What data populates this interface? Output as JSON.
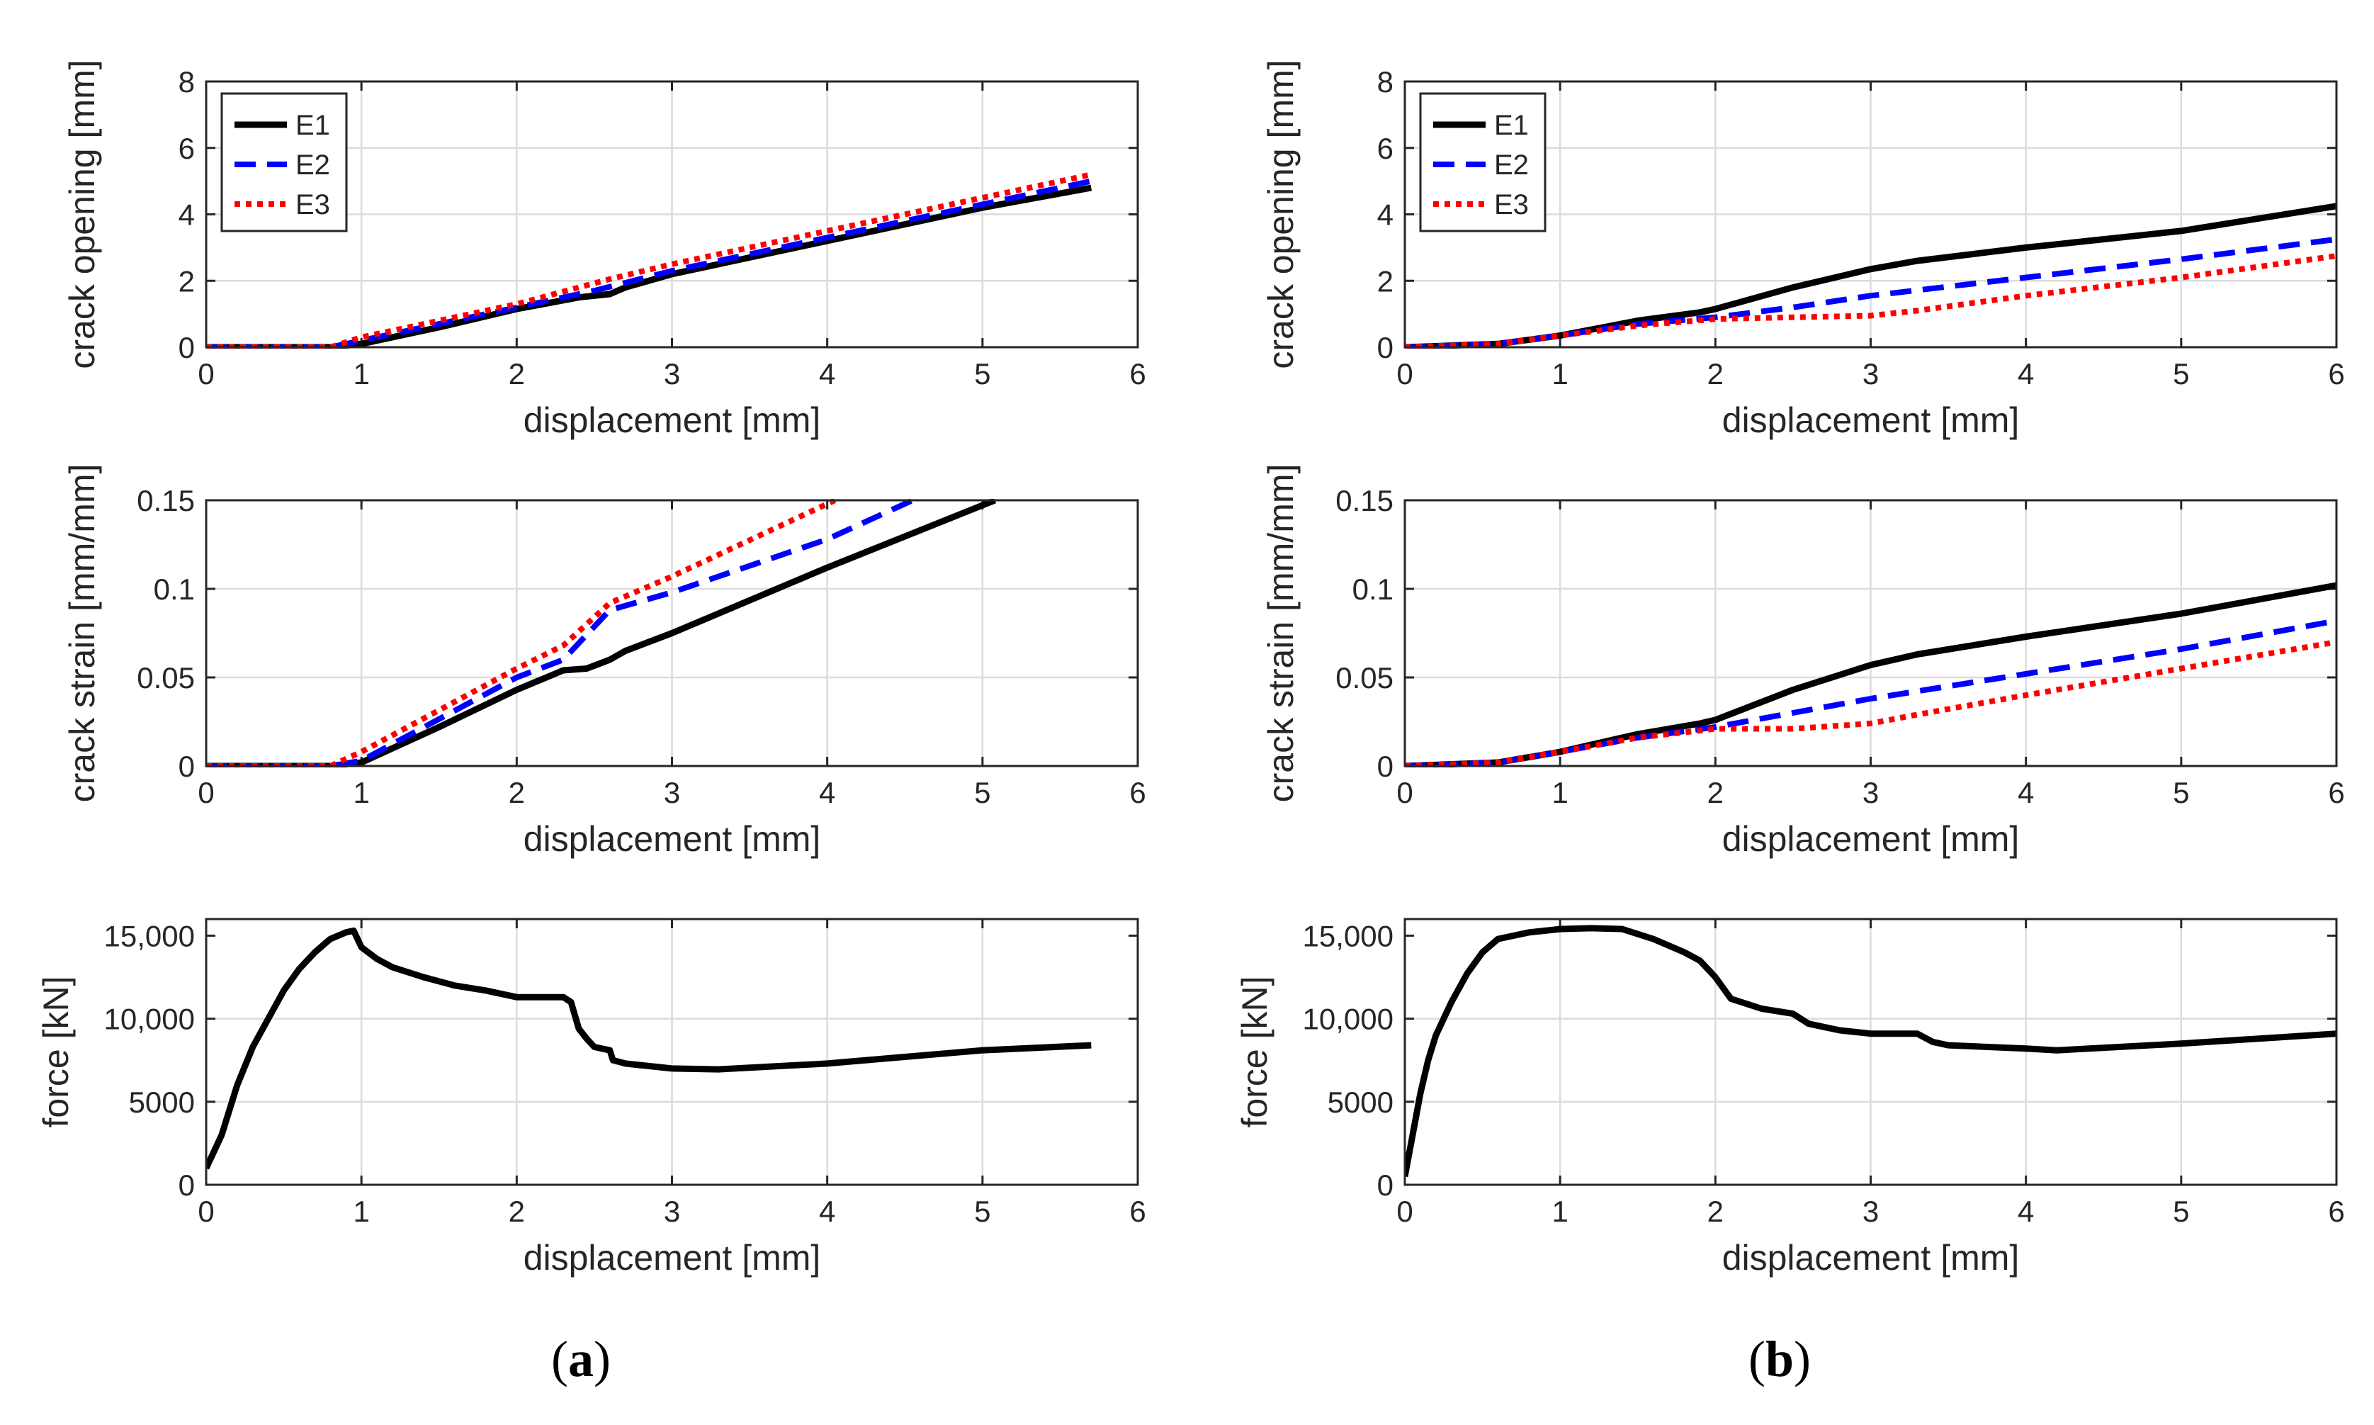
{
  "panels": [
    {
      "letter": "a",
      "open": "(",
      "close": ")"
    },
    {
      "letter": "b",
      "open": "(",
      "close": ")"
    }
  ],
  "colors": {
    "E1": "#000000",
    "E2": "#0000ff",
    "E3": "#ff0000"
  },
  "chart_data": [
    {
      "type": "line",
      "panel": "a",
      "title": "",
      "xlabel": "displacement [mm]",
      "ylabel": "crack opening [mm]",
      "xlim": [
        0,
        6
      ],
      "ylim": [
        0,
        8
      ],
      "xticks": [
        0,
        1,
        2,
        3,
        4,
        5,
        6
      ],
      "xtick_labels": [
        "0",
        "1",
        "2",
        "3",
        "4",
        "5",
        "6"
      ],
      "yticks": [
        0,
        2,
        4,
        6,
        8
      ],
      "ytick_labels": [
        "0",
        "2",
        "4",
        "6",
        "8"
      ],
      "grid": true,
      "legend_position": "top-left",
      "series": [
        {
          "name": "E1",
          "style": "solid",
          "x": [
            0,
            0.8,
            1.0,
            1.5,
            2.0,
            2.4,
            2.6,
            2.7,
            3.0,
            4.0,
            5.0,
            5.7
          ],
          "y": [
            0,
            0,
            0.1,
            0.6,
            1.15,
            1.5,
            1.6,
            1.8,
            2.2,
            3.2,
            4.2,
            4.8
          ]
        },
        {
          "name": "E2",
          "style": "dashed",
          "x": [
            0,
            0.8,
            1.0,
            2.0,
            2.5,
            3.0,
            4.0,
            5.0,
            5.7
          ],
          "y": [
            0,
            0,
            0.2,
            1.2,
            1.7,
            2.3,
            3.3,
            4.3,
            5.0
          ]
        },
        {
          "name": "E3",
          "style": "dotted",
          "x": [
            0,
            0.8,
            1.0,
            2.0,
            2.6,
            3.0,
            4.0,
            5.0,
            5.7
          ],
          "y": [
            0,
            0,
            0.3,
            1.3,
            2.05,
            2.5,
            3.5,
            4.5,
            5.2
          ]
        }
      ]
    },
    {
      "type": "line",
      "panel": "a",
      "title": "",
      "xlabel": "displacement [mm]",
      "ylabel": "crack strain [mm/mm]",
      "xlim": [
        0,
        6
      ],
      "ylim": [
        0,
        0.15
      ],
      "xticks": [
        0,
        1,
        2,
        3,
        4,
        5,
        6
      ],
      "xtick_labels": [
        "0",
        "1",
        "2",
        "3",
        "4",
        "5",
        "6"
      ],
      "yticks": [
        0,
        0.05,
        0.1,
        0.15
      ],
      "ytick_labels": [
        "0",
        "0.05",
        "0.1",
        "0.15"
      ],
      "grid": true,
      "series": [
        {
          "name": "E1",
          "style": "solid",
          "x": [
            0,
            0.8,
            1.0,
            1.5,
            2.0,
            2.3,
            2.45,
            2.6,
            2.7,
            3.0,
            4.0,
            5.08
          ],
          "y": [
            0,
            0,
            0.002,
            0.022,
            0.043,
            0.054,
            0.055,
            0.06,
            0.065,
            0.075,
            0.112,
            0.15
          ]
        },
        {
          "name": "E2",
          "style": "dashed",
          "x": [
            0,
            0.8,
            1.0,
            2.0,
            2.3,
            2.6,
            3.0,
            4.0,
            4.55
          ],
          "y": [
            0,
            0,
            0.003,
            0.05,
            0.06,
            0.088,
            0.098,
            0.128,
            0.15
          ]
        },
        {
          "name": "E3",
          "style": "dotted",
          "x": [
            0,
            0.8,
            1.0,
            2.0,
            2.3,
            2.6,
            3.0,
            4.05
          ],
          "y": [
            0,
            0,
            0.008,
            0.055,
            0.068,
            0.092,
            0.107,
            0.15
          ]
        }
      ]
    },
    {
      "type": "line",
      "panel": "a",
      "title": "",
      "xlabel": "displacement [mm]",
      "ylabel": "force [kN]",
      "xlim": [
        0,
        6
      ],
      "ylim": [
        0,
        16000
      ],
      "xticks": [
        0,
        1,
        2,
        3,
        4,
        5,
        6
      ],
      "xtick_labels": [
        "0",
        "1",
        "2",
        "3",
        "4",
        "5",
        "6"
      ],
      "yticks": [
        0,
        5000,
        10000,
        15000
      ],
      "ytick_labels": [
        "0",
        "5000",
        "10,000",
        "15,000"
      ],
      "grid": true,
      "series": [
        {
          "name": "E1",
          "style": "solid",
          "x": [
            0,
            0.05,
            0.1,
            0.2,
            0.3,
            0.4,
            0.5,
            0.6,
            0.7,
            0.8,
            0.9,
            0.95,
            1.0,
            1.1,
            1.2,
            1.4,
            1.6,
            1.8,
            2.0,
            2.2,
            2.3,
            2.35,
            2.4,
            2.45,
            2.5,
            2.6,
            2.62,
            2.7,
            3.0,
            3.3,
            4.0,
            4.5,
            5.0,
            5.7
          ],
          "y": [
            1000,
            2000,
            3000,
            6000,
            8300,
            10000,
            11700,
            13000,
            14000,
            14800,
            15200,
            15300,
            14300,
            13600,
            13100,
            12500,
            12000,
            11700,
            11300,
            11300,
            11300,
            11000,
            9400,
            8800,
            8300,
            8100,
            7500,
            7300,
            7000,
            6950,
            7300,
            7700,
            8100,
            8400
          ]
        }
      ]
    },
    {
      "type": "line",
      "panel": "b",
      "title": "",
      "xlabel": "displacement [mm]",
      "ylabel": "crack opening [mm]",
      "xlim": [
        0,
        6
      ],
      "ylim": [
        0,
        8
      ],
      "xticks": [
        0,
        1,
        2,
        3,
        4,
        5,
        6
      ],
      "xtick_labels": [
        "0",
        "1",
        "2",
        "3",
        "4",
        "5",
        "6"
      ],
      "yticks": [
        0,
        2,
        4,
        6,
        8
      ],
      "ytick_labels": [
        "0",
        "2",
        "4",
        "6",
        "8"
      ],
      "grid": true,
      "legend_position": "top-left",
      "series": [
        {
          "name": "E1",
          "style": "solid",
          "x": [
            0,
            0.6,
            1.0,
            1.5,
            1.9,
            2.0,
            2.5,
            3.0,
            3.3,
            4.0,
            5.0,
            6.0
          ],
          "y": [
            0,
            0.1,
            0.35,
            0.8,
            1.05,
            1.15,
            1.8,
            2.35,
            2.6,
            3.0,
            3.5,
            4.25
          ]
        },
        {
          "name": "E2",
          "style": "dashed",
          "x": [
            0,
            0.6,
            1.0,
            1.5,
            2.0,
            2.5,
            3.0,
            4.0,
            5.0,
            6.0
          ],
          "y": [
            0,
            0.1,
            0.35,
            0.7,
            0.9,
            1.2,
            1.55,
            2.1,
            2.65,
            3.25
          ]
        },
        {
          "name": "E3",
          "style": "dotted",
          "x": [
            0,
            0.6,
            1.0,
            1.5,
            2.0,
            2.5,
            3.0,
            3.3,
            4.0,
            5.0,
            6.0
          ],
          "y": [
            0,
            0.1,
            0.35,
            0.65,
            0.85,
            0.9,
            0.95,
            1.1,
            1.55,
            2.1,
            2.75
          ]
        }
      ]
    },
    {
      "type": "line",
      "panel": "b",
      "title": "",
      "xlabel": "displacement [mm]",
      "ylabel": "crack strain [mm/mm]",
      "xlim": [
        0,
        6
      ],
      "ylim": [
        0,
        0.15
      ],
      "xticks": [
        0,
        1,
        2,
        3,
        4,
        5,
        6
      ],
      "xtick_labels": [
        "0",
        "1",
        "2",
        "3",
        "4",
        "5",
        "6"
      ],
      "yticks": [
        0,
        0.05,
        0.1,
        0.15
      ],
      "ytick_labels": [
        "0",
        "0.05",
        "0.1",
        "0.15"
      ],
      "grid": true,
      "series": [
        {
          "name": "E1",
          "style": "solid",
          "x": [
            0,
            0.6,
            1.0,
            1.5,
            1.9,
            2.0,
            2.5,
            3.0,
            3.3,
            4.0,
            5.0,
            6.0
          ],
          "y": [
            0,
            0.002,
            0.008,
            0.018,
            0.024,
            0.026,
            0.043,
            0.057,
            0.063,
            0.073,
            0.086,
            0.102
          ]
        },
        {
          "name": "E2",
          "style": "dashed",
          "x": [
            0,
            0.6,
            1.0,
            1.5,
            2.0,
            2.5,
            3.0,
            4.0,
            5.0,
            6.0
          ],
          "y": [
            0,
            0.002,
            0.008,
            0.016,
            0.022,
            0.03,
            0.038,
            0.052,
            0.066,
            0.082
          ]
        },
        {
          "name": "E3",
          "style": "dotted",
          "x": [
            0,
            0.6,
            1.0,
            1.5,
            2.0,
            2.5,
            3.0,
            3.3,
            4.0,
            5.0,
            6.0
          ],
          "y": [
            0,
            0.002,
            0.008,
            0.016,
            0.021,
            0.021,
            0.024,
            0.029,
            0.04,
            0.055,
            0.07
          ]
        }
      ]
    },
    {
      "type": "line",
      "panel": "b",
      "title": "",
      "xlabel": "displacement [mm]",
      "ylabel": "force [kN]",
      "xlim": [
        0,
        6
      ],
      "ylim": [
        0,
        16000
      ],
      "xticks": [
        0,
        1,
        2,
        3,
        4,
        5,
        6
      ],
      "xtick_labels": [
        "0",
        "1",
        "2",
        "3",
        "4",
        "5",
        "6"
      ],
      "yticks": [
        0,
        5000,
        10000,
        15000
      ],
      "ytick_labels": [
        "0",
        "5000",
        "10,000",
        "15,000"
      ],
      "grid": true,
      "series": [
        {
          "name": "E1",
          "style": "solid",
          "x": [
            0,
            0.05,
            0.1,
            0.15,
            0.2,
            0.3,
            0.4,
            0.5,
            0.6,
            0.8,
            1.0,
            1.2,
            1.4,
            1.6,
            1.8,
            1.9,
            2.0,
            2.1,
            2.3,
            2.5,
            2.6,
            2.8,
            3.0,
            3.3,
            3.4,
            3.5,
            4.0,
            4.2,
            5.0,
            6.0
          ],
          "y": [
            500,
            3000,
            5500,
            7500,
            9000,
            11000,
            12700,
            14000,
            14800,
            15200,
            15400,
            15450,
            15400,
            14800,
            14000,
            13500,
            12500,
            11200,
            10600,
            10300,
            9700,
            9300,
            9100,
            9100,
            8600,
            8400,
            8200,
            8100,
            8500,
            9100
          ]
        }
      ]
    }
  ]
}
